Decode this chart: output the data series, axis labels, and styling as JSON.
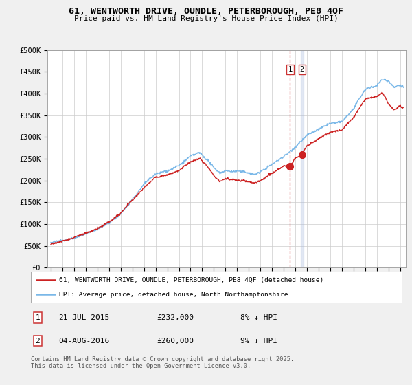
{
  "title_line1": "61, WENTWORTH DRIVE, OUNDLE, PETERBOROUGH, PE8 4QF",
  "title_line2": "Price paid vs. HM Land Registry's House Price Index (HPI)",
  "ylim": [
    0,
    500000
  ],
  "yticks": [
    0,
    50000,
    100000,
    150000,
    200000,
    250000,
    300000,
    350000,
    400000,
    450000,
    500000
  ],
  "ytick_labels": [
    "£0",
    "£50K",
    "£100K",
    "£150K",
    "£200K",
    "£250K",
    "£300K",
    "£350K",
    "£400K",
    "£450K",
    "£500K"
  ],
  "hpi_color": "#7ab8e8",
  "price_color": "#cc2222",
  "vline1_color": "#cc3333",
  "vline2_color": "#aabbdd",
  "sale1_date": 2015.55,
  "sale1_price": 232000,
  "sale2_date": 2016.58,
  "sale2_price": 260000,
  "legend_line1": "61, WENTWORTH DRIVE, OUNDLE, PETERBOROUGH, PE8 4QF (detached house)",
  "legend_line2": "HPI: Average price, detached house, North Northamptonshire",
  "footnote": "Contains HM Land Registry data © Crown copyright and database right 2025.\nThis data is licensed under the Open Government Licence v3.0.",
  "background_color": "#f0f0f0",
  "plot_bg_color": "#ffffff",
  "xstart": 1995,
  "xend": 2025
}
